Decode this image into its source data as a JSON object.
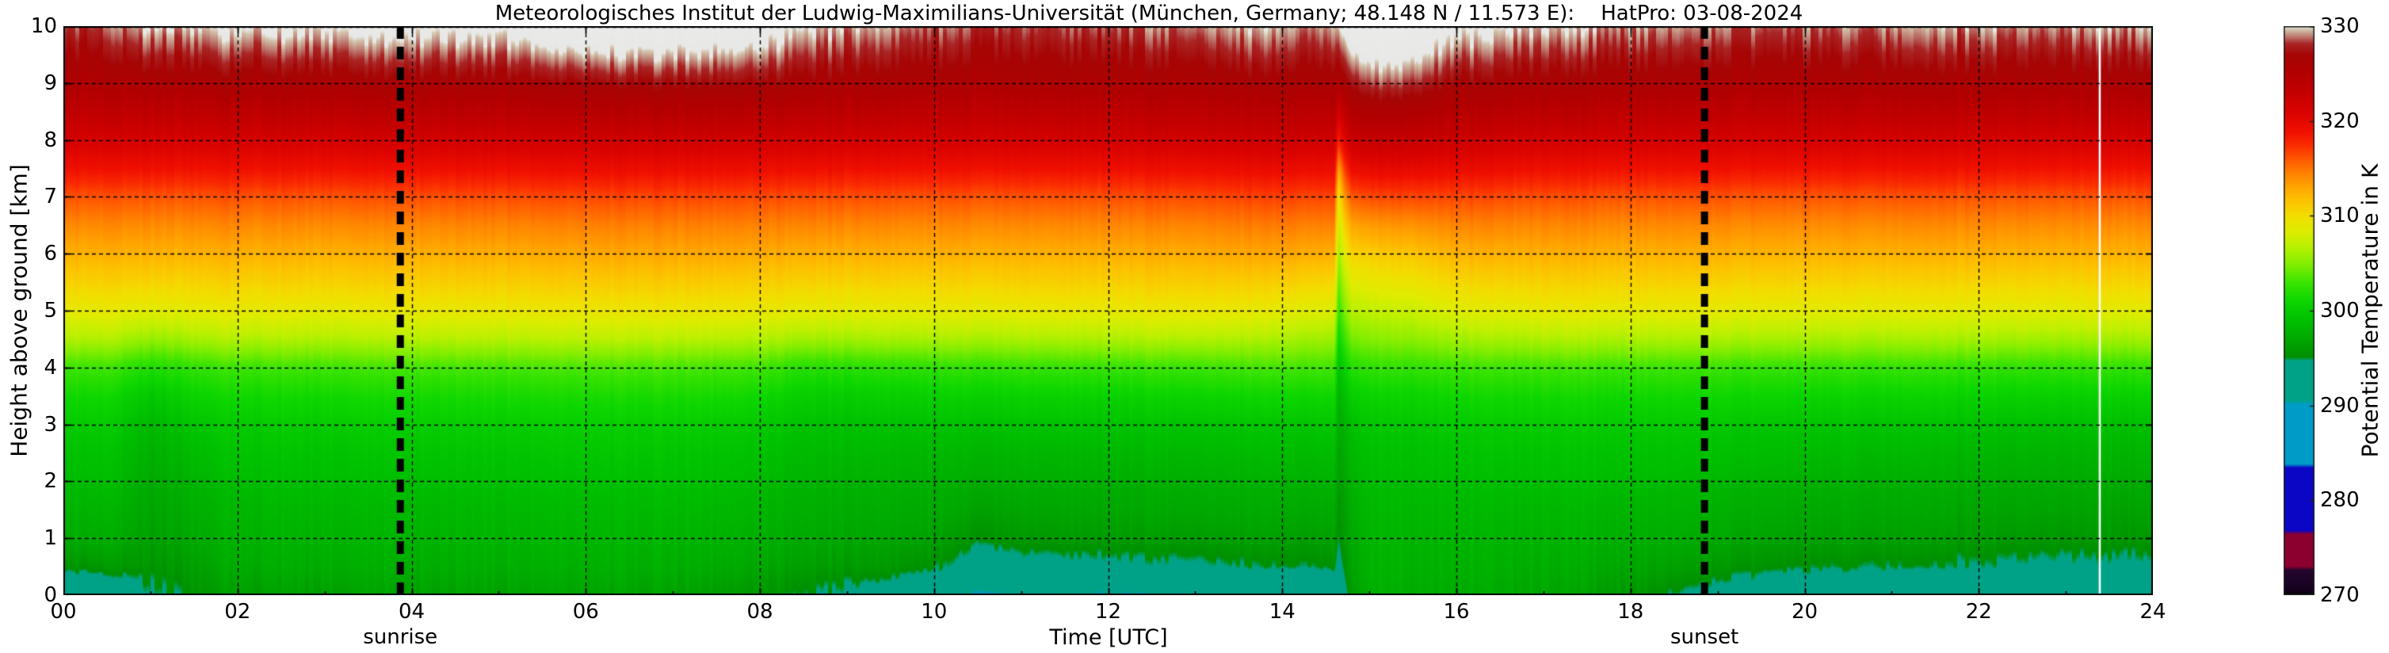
{
  "title": "Meteorologisches Institut der Ludwig-Maximilians-Universität (München, Germany; 48.148 N / 11.573 E):    HatPro: 03-08-2024",
  "axes": {
    "x_label": "Time [UTC]",
    "y_label": "Height above ground [km]",
    "x_tick_labels": [
      "00",
      "02",
      "04",
      "06",
      "08",
      "10",
      "12",
      "14",
      "16",
      "18",
      "20",
      "22",
      "24"
    ],
    "x_tick_hours": [
      0,
      2,
      4,
      6,
      8,
      10,
      12,
      14,
      16,
      18,
      20,
      22,
      24
    ],
    "y_tick_labels": [
      "0",
      "1",
      "2",
      "3",
      "4",
      "5",
      "6",
      "7",
      "8",
      "9",
      "10"
    ],
    "y_tick_values": [
      0,
      1,
      2,
      3,
      4,
      5,
      6,
      7,
      8,
      9,
      10
    ]
  },
  "colorbar": {
    "label": "Potential Temperature in K",
    "tick_labels": [
      "270",
      "280",
      "290",
      "300",
      "310",
      "320",
      "330"
    ],
    "tick_values": [
      270,
      280,
      290,
      300,
      310,
      320,
      330
    ],
    "min": 270,
    "max": 330,
    "stops": [
      [
        270.0,
        "#000000"
      ],
      [
        270.4,
        "#15021f"
      ],
      [
        272.6,
        "#23052e"
      ],
      [
        273.0,
        "#8c0030"
      ],
      [
        276.4,
        "#8c0030"
      ],
      [
        276.8,
        "#0a06c4"
      ],
      [
        283.4,
        "#0a06c4"
      ],
      [
        283.8,
        "#009cc8"
      ],
      [
        290.1,
        "#009cc8"
      ],
      [
        290.5,
        "#00a287"
      ],
      [
        294.7,
        "#00a287"
      ],
      [
        295.1,
        "#008f00"
      ],
      [
        297.0,
        "#00a800"
      ],
      [
        299.0,
        "#00c000"
      ],
      [
        301.0,
        "#0cd600"
      ],
      [
        303.0,
        "#3ce400"
      ],
      [
        305.0,
        "#85ee00"
      ],
      [
        307.0,
        "#c0f000"
      ],
      [
        308.5,
        "#dfec00"
      ],
      [
        310.0,
        "#f2de00"
      ],
      [
        311.5,
        "#fcc500"
      ],
      [
        313.0,
        "#ffa600"
      ],
      [
        314.5,
        "#ff8200"
      ],
      [
        316.0,
        "#ff5800"
      ],
      [
        317.5,
        "#fa2b00"
      ],
      [
        319.0,
        "#ef0f00"
      ],
      [
        321.0,
        "#da0300"
      ],
      [
        323.0,
        "#c40000"
      ],
      [
        325.0,
        "#b20000"
      ],
      [
        327.0,
        "#a60505"
      ],
      [
        328.2,
        "#a92525"
      ],
      [
        328.8,
        "#b96a63"
      ],
      [
        329.3,
        "#c89d8c"
      ],
      [
        329.7,
        "#d3c4ad"
      ],
      [
        330.0,
        "#e8e8e6"
      ],
      [
        335.0,
        "#ececec"
      ]
    ]
  },
  "annotations": {
    "sunrise_label": "sunrise",
    "sunrise_time": 3.87,
    "sunset_label": "sunset",
    "sunset_time": 18.85,
    "missing_data_time": 23.39
  },
  "chart_data": {
    "type": "heatmap",
    "title": "Potential temperature time-height section",
    "x_unit": "hours UTC",
    "y_unit": "km above ground",
    "value_unit": "K",
    "x_range": [
      0,
      24
    ],
    "y_range": [
      0,
      10
    ],
    "value_range": [
      270,
      330
    ],
    "heights": [
      0,
      0.25,
      0.5,
      1,
      1.5,
      2,
      2.5,
      3,
      3.5,
      4,
      4.5,
      5,
      5.5,
      6,
      6.5,
      7,
      7.5,
      8,
      9,
      10
    ],
    "times": [
      0,
      0.5,
      1,
      1.5,
      2,
      3,
      4,
      5,
      6,
      7,
      8,
      8.5,
      9,
      9.5,
      10,
      10.5,
      11,
      12,
      13,
      14,
      14.5,
      14.6,
      14.65,
      14.72,
      14.8,
      15,
      15.5,
      16,
      17,
      18,
      19,
      20,
      21,
      22,
      23,
      24
    ],
    "theta_profiles": [
      [
        291.5,
        293.5,
        295.5,
        297.3,
        298.0,
        298.6,
        299.2,
        300.0,
        301.2,
        303.0,
        306.5,
        309.0,
        310.8,
        312.5,
        314.2,
        316.2,
        319.0,
        321.5,
        325.5,
        328.3
      ],
      [
        292.0,
        294.0,
        296.0,
        297.5,
        298.1,
        298.7,
        299.2,
        300.0,
        301.2,
        303.0,
        306.5,
        309.0,
        310.8,
        312.5,
        314.2,
        316.2,
        319.0,
        321.5,
        325.5,
        328.6
      ],
      [
        294.5,
        295.0,
        295.6,
        296.4,
        296.8,
        297.2,
        297.7,
        298.4,
        299.6,
        301.8,
        305.5,
        308.6,
        310.6,
        312.4,
        314.1,
        316.1,
        319.0,
        321.5,
        325.8,
        329.8
      ],
      [
        295.5,
        296.0,
        296.5,
        297.2,
        297.6,
        298.1,
        298.7,
        299.5,
        300.8,
        302.6,
        306.2,
        308.9,
        310.7,
        312.5,
        314.2,
        316.2,
        319.0,
        321.5,
        326.0,
        330.0
      ],
      [
        296.3,
        296.8,
        297.3,
        297.9,
        298.2,
        298.7,
        299.3,
        300.0,
        301.2,
        303.0,
        306.5,
        309.0,
        310.8,
        312.5,
        314.2,
        316.2,
        319.0,
        321.5,
        326.0,
        330.2
      ],
      [
        296.5,
        297.0,
        297.5,
        298.0,
        298.3,
        298.8,
        299.3,
        300.1,
        301.3,
        303.1,
        306.5,
        309.0,
        310.8,
        312.5,
        314.2,
        316.2,
        319.0,
        321.6,
        326.2,
        330.6
      ],
      [
        296.5,
        297.0,
        297.5,
        298.0,
        298.3,
        298.8,
        299.4,
        300.2,
        301.4,
        303.2,
        306.6,
        309.1,
        310.9,
        312.6,
        314.3,
        316.3,
        319.1,
        321.7,
        326.3,
        330.7
      ],
      [
        296.6,
        297.1,
        297.6,
        298.1,
        298.4,
        298.9,
        299.4,
        300.2,
        301.5,
        303.3,
        306.7,
        309.2,
        311.0,
        312.7,
        314.4,
        316.4,
        319.2,
        321.8,
        326.4,
        331.0
      ],
      [
        296.6,
        297.1,
        297.6,
        298.1,
        298.4,
        298.9,
        299.5,
        300.3,
        301.5,
        303.4,
        306.8,
        309.3,
        311.1,
        312.8,
        314.5,
        316.5,
        319.3,
        321.9,
        326.8,
        332.2
      ],
      [
        296.6,
        297.1,
        297.6,
        298.1,
        298.5,
        299.0,
        299.5,
        300.3,
        301.6,
        303.4,
        306.8,
        309.4,
        311.2,
        312.9,
        314.6,
        316.6,
        319.4,
        322.0,
        327.2,
        332.6
      ],
      [
        295.8,
        296.4,
        297.0,
        297.7,
        298.1,
        298.6,
        299.1,
        299.9,
        301.2,
        303.1,
        306.6,
        309.2,
        311.0,
        312.8,
        314.5,
        316.5,
        319.3,
        321.9,
        327.0,
        331.8
      ],
      [
        295.0,
        295.7,
        296.4,
        297.2,
        297.6,
        298.1,
        298.5,
        299.2,
        300.3,
        302.2,
        306.0,
        308.9,
        310.8,
        312.6,
        314.4,
        316.4,
        319.2,
        321.8,
        326.5,
        330.2
      ],
      [
        294.2,
        295.2,
        296.1,
        297.0,
        297.4,
        297.9,
        298.4,
        299.1,
        300.2,
        302.2,
        306.0,
        308.8,
        310.7,
        312.5,
        314.3,
        316.3,
        319.1,
        321.7,
        326.2,
        329.6
      ],
      [
        292.8,
        294.6,
        295.8,
        296.8,
        297.3,
        297.8,
        298.3,
        299.1,
        300.3,
        302.3,
        306.1,
        308.8,
        310.7,
        312.5,
        314.2,
        316.2,
        319.0,
        321.6,
        326.0,
        329.2
      ],
      [
        291.2,
        293.6,
        295.3,
        296.6,
        297.2,
        297.7,
        298.3,
        299.2,
        300.5,
        302.5,
        306.2,
        308.9,
        310.7,
        312.5,
        314.2,
        316.2,
        319.0,
        321.6,
        325.8,
        328.7
      ],
      [
        290.2,
        291.6,
        293.2,
        295.4,
        296.6,
        297.4,
        298.1,
        299.1,
        300.5,
        302.6,
        306.2,
        308.9,
        310.7,
        312.5,
        314.2,
        316.2,
        319.0,
        321.6,
        325.7,
        328.4
      ],
      [
        290.5,
        292.0,
        293.8,
        295.9,
        296.8,
        297.5,
        298.2,
        299.2,
        300.6,
        302.7,
        306.3,
        309.0,
        310.8,
        312.5,
        314.2,
        316.2,
        319.0,
        321.6,
        325.7,
        328.3
      ],
      [
        290.4,
        292.2,
        294.2,
        296.2,
        297.0,
        297.6,
        298.3,
        299.3,
        300.7,
        302.8,
        306.4,
        309.1,
        310.9,
        312.6,
        314.3,
        316.3,
        319.1,
        321.7,
        325.8,
        328.6
      ],
      [
        290.5,
        292.5,
        294.5,
        296.3,
        297.1,
        297.7,
        298.4,
        299.4,
        300.9,
        303.0,
        306.6,
        309.3,
        311.1,
        312.8,
        314.5,
        316.5,
        319.3,
        321.9,
        326.0,
        329.3
      ],
      [
        291.0,
        293.0,
        294.9,
        296.4,
        297.2,
        297.8,
        298.5,
        299.5,
        301.0,
        303.2,
        306.2,
        308.8,
        310.9,
        312.9,
        314.7,
        316.7,
        319.5,
        322.1,
        326.2,
        329.4
      ],
      [
        291.6,
        293.4,
        295.1,
        296.5,
        297.2,
        297.9,
        298.6,
        299.6,
        301.1,
        303.2,
        305.9,
        308.4,
        310.5,
        312.6,
        314.5,
        316.6,
        319.4,
        322.0,
        326.1,
        329.2
      ],
      [
        291.8,
        293.5,
        295.1,
        296.5,
        297.2,
        297.9,
        298.6,
        299.6,
        301.0,
        303.0,
        305.6,
        308.0,
        310.2,
        312.4,
        314.4,
        316.5,
        319.3,
        321.9,
        326.0,
        329.1
      ],
      [
        292.0,
        292.8,
        293.6,
        294.8,
        295.4,
        296.0,
        296.5,
        297.1,
        297.9,
        299.0,
        300.8,
        302.6,
        304.2,
        305.8,
        307.4,
        309.4,
        313.0,
        318.0,
        325.0,
        329.3
      ],
      [
        294.0,
        294.6,
        295.2,
        296.0,
        296.4,
        296.9,
        297.4,
        298.0,
        299.0,
        300.5,
        302.8,
        304.8,
        306.6,
        308.6,
        310.8,
        313.6,
        317.0,
        320.6,
        326.3,
        330.5
      ],
      [
        295.8,
        296.2,
        296.6,
        297.0,
        297.4,
        297.8,
        298.3,
        299.0,
        300.2,
        302.0,
        304.5,
        306.6,
        308.6,
        310.6,
        312.9,
        315.9,
        319.3,
        322.3,
        327.3,
        331.8
      ],
      [
        297.3,
        297.7,
        297.9,
        298.1,
        298.3,
        298.6,
        299.0,
        299.6,
        300.7,
        302.5,
        305.0,
        307.0,
        309.0,
        311.0,
        313.4,
        316.4,
        319.8,
        322.8,
        328.3,
        332.8
      ],
      [
        297.5,
        297.8,
        298.0,
        298.2,
        298.4,
        298.7,
        299.1,
        299.8,
        300.9,
        302.7,
        305.4,
        307.6,
        309.6,
        311.6,
        313.9,
        316.7,
        320.0,
        322.9,
        328.6,
        333.2
      ],
      [
        297.3,
        297.6,
        297.9,
        298.1,
        298.4,
        298.8,
        299.3,
        300.0,
        301.2,
        303.0,
        306.0,
        308.5,
        310.5,
        312.4,
        314.4,
        316.6,
        319.6,
        322.3,
        326.8,
        330.8
      ],
      [
        296.9,
        297.2,
        297.5,
        298.0,
        298.3,
        298.8,
        299.3,
        300.1,
        301.3,
        303.1,
        306.4,
        309.0,
        310.8,
        312.6,
        314.3,
        316.3,
        319.1,
        321.7,
        326.2,
        329.8
      ],
      [
        295.9,
        296.5,
        297.0,
        297.7,
        298.1,
        298.7,
        299.2,
        300.0,
        301.2,
        303.0,
        306.4,
        309.0,
        310.8,
        312.5,
        314.2,
        316.2,
        319.0,
        321.6,
        326.0,
        329.3
      ],
      [
        293.6,
        294.9,
        295.9,
        297.1,
        297.7,
        298.3,
        299.0,
        299.8,
        301.1,
        302.9,
        306.3,
        308.9,
        310.7,
        312.5,
        314.2,
        316.2,
        319.0,
        321.5,
        325.9,
        329.0
      ],
      [
        292.1,
        293.8,
        295.2,
        296.6,
        297.2,
        297.9,
        298.6,
        299.5,
        300.9,
        302.8,
        306.2,
        308.8,
        310.7,
        312.4,
        314.1,
        316.1,
        318.9,
        321.5,
        325.8,
        328.9
      ],
      [
        291.6,
        293.4,
        294.9,
        296.4,
        297.0,
        297.6,
        298.3,
        299.3,
        300.7,
        302.7,
        306.1,
        308.8,
        310.6,
        312.4,
        314.1,
        316.1,
        318.9,
        321.5,
        325.8,
        329.0
      ],
      [
        291.2,
        293.0,
        294.6,
        296.1,
        296.8,
        297.4,
        298.1,
        299.1,
        300.6,
        302.6,
        306.1,
        308.7,
        310.6,
        312.4,
        314.1,
        316.1,
        318.9,
        321.5,
        325.9,
        329.2
      ],
      [
        291.0,
        292.7,
        294.3,
        295.9,
        296.7,
        297.3,
        298.0,
        299.0,
        300.5,
        302.6,
        306.0,
        308.7,
        310.6,
        312.4,
        314.1,
        316.1,
        318.9,
        321.5,
        325.9,
        329.3
      ],
      [
        291.0,
        292.6,
        294.2,
        295.8,
        296.6,
        297.3,
        298.0,
        299.0,
        300.5,
        302.6,
        306.0,
        308.7,
        310.6,
        312.4,
        314.1,
        316.1,
        318.9,
        321.5,
        326.0,
        329.5
      ]
    ]
  }
}
